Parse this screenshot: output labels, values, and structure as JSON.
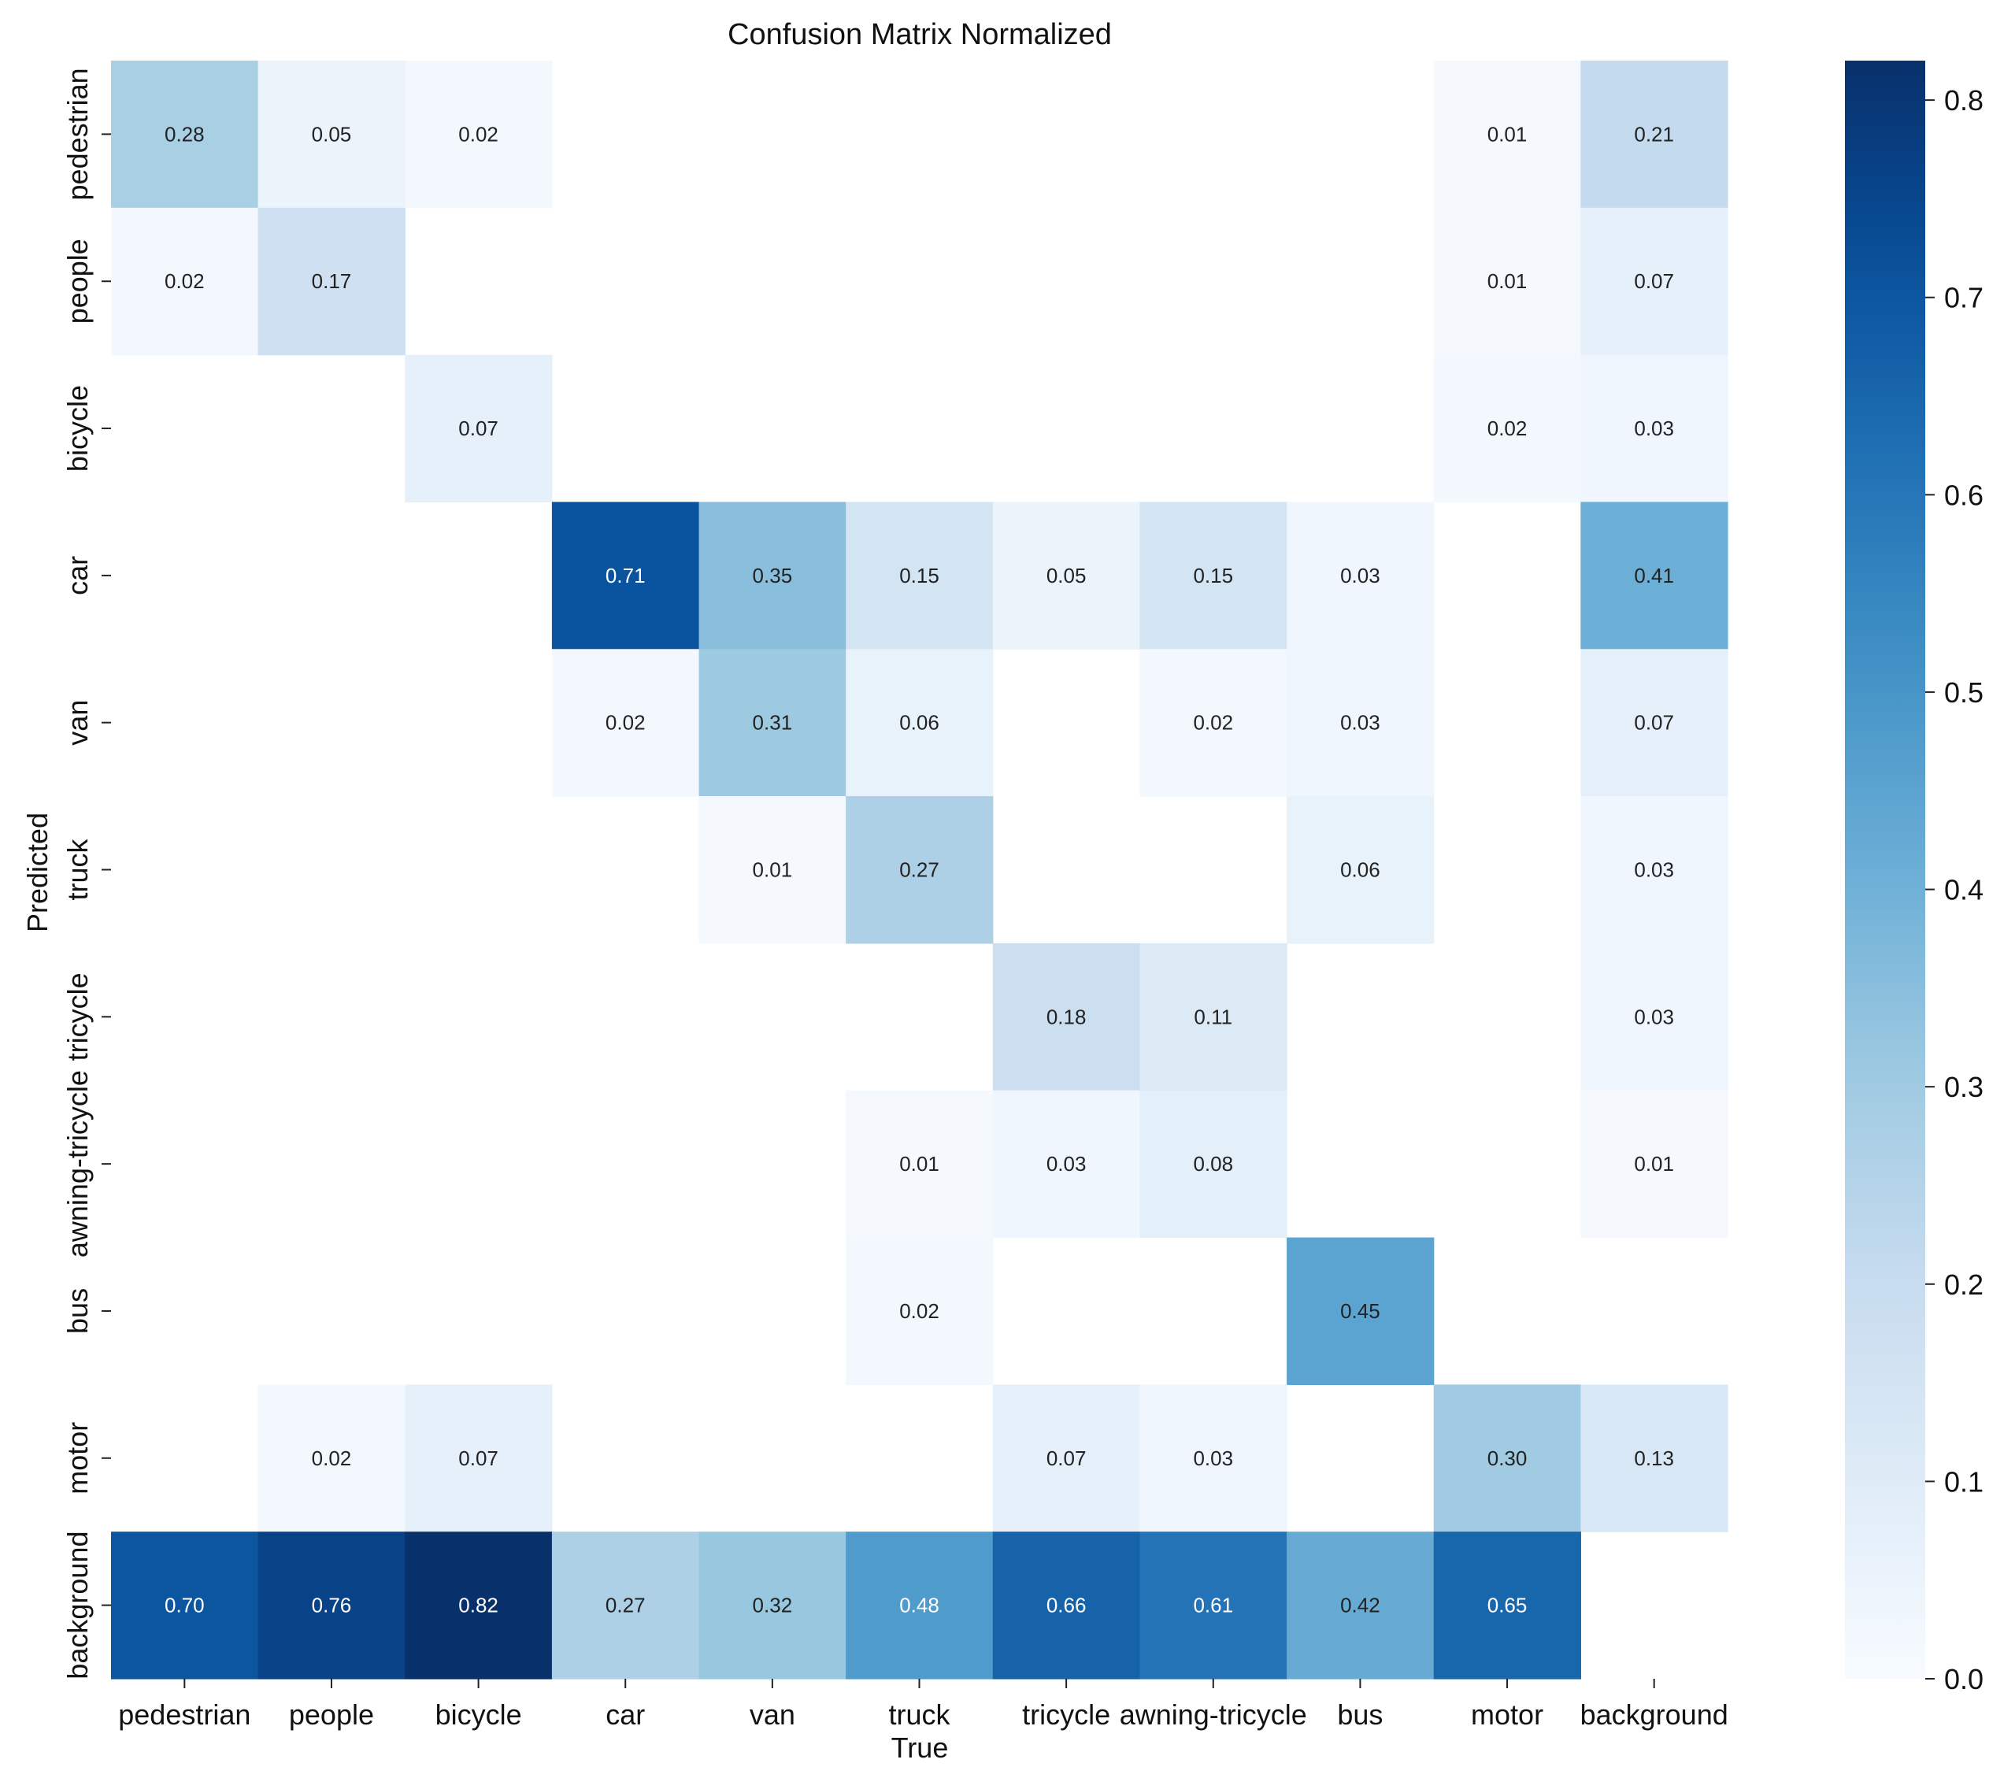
{
  "chart_data": {
    "type": "heatmap",
    "title": "Confusion Matrix Normalized",
    "xlabel": "True",
    "ylabel": "Predicted",
    "x_categories": [
      "pedestrian",
      "people",
      "bicycle",
      "car",
      "van",
      "truck",
      "tricycle",
      "awning-tricycle",
      "bus",
      "motor",
      "background"
    ],
    "y_categories": [
      "pedestrian",
      "people",
      "bicycle",
      "car",
      "van",
      "truck",
      "tricycle",
      "awning-tricycle",
      "bus",
      "motor",
      "background"
    ],
    "values": [
      [
        0.28,
        0.05,
        0.02,
        null,
        null,
        null,
        null,
        null,
        null,
        0.01,
        0.21
      ],
      [
        0.02,
        0.17,
        null,
        null,
        null,
        null,
        null,
        null,
        null,
        0.01,
        0.07
      ],
      [
        null,
        null,
        0.07,
        null,
        null,
        null,
        null,
        null,
        null,
        0.02,
        0.03
      ],
      [
        null,
        null,
        null,
        0.71,
        0.35,
        0.15,
        0.05,
        0.15,
        0.03,
        null,
        0.41
      ],
      [
        null,
        null,
        null,
        0.02,
        0.31,
        0.06,
        null,
        0.02,
        0.03,
        null,
        0.07
      ],
      [
        null,
        null,
        null,
        null,
        0.01,
        0.27,
        null,
        null,
        0.06,
        null,
        0.03
      ],
      [
        null,
        null,
        null,
        null,
        null,
        null,
        0.18,
        0.11,
        null,
        null,
        0.03
      ],
      [
        null,
        null,
        null,
        null,
        null,
        0.01,
        0.03,
        0.08,
        null,
        null,
        0.01
      ],
      [
        null,
        null,
        null,
        null,
        null,
        0.02,
        null,
        null,
        0.45,
        null,
        null
      ],
      [
        null,
        0.02,
        0.07,
        null,
        null,
        null,
        0.07,
        0.03,
        null,
        0.3,
        0.13
      ],
      [
        0.7,
        0.76,
        0.82,
        0.27,
        0.32,
        0.48,
        0.66,
        0.61,
        0.42,
        0.65,
        null
      ]
    ],
    "vmin": 0.0,
    "vmax": 0.82,
    "colormap": "Blues",
    "colorbar_ticks": [
      0.0,
      0.1,
      0.2,
      0.3,
      0.4,
      0.5,
      0.6,
      0.7,
      0.8
    ],
    "colorbar_tick_labels": [
      "0.0",
      "0.1",
      "0.2",
      "0.3",
      "0.4",
      "0.5",
      "0.6",
      "0.7",
      "0.8"
    ],
    "colors": {
      "text_dark": "#222222",
      "text_light": "#ffffff",
      "background": "#ffffff"
    }
  }
}
